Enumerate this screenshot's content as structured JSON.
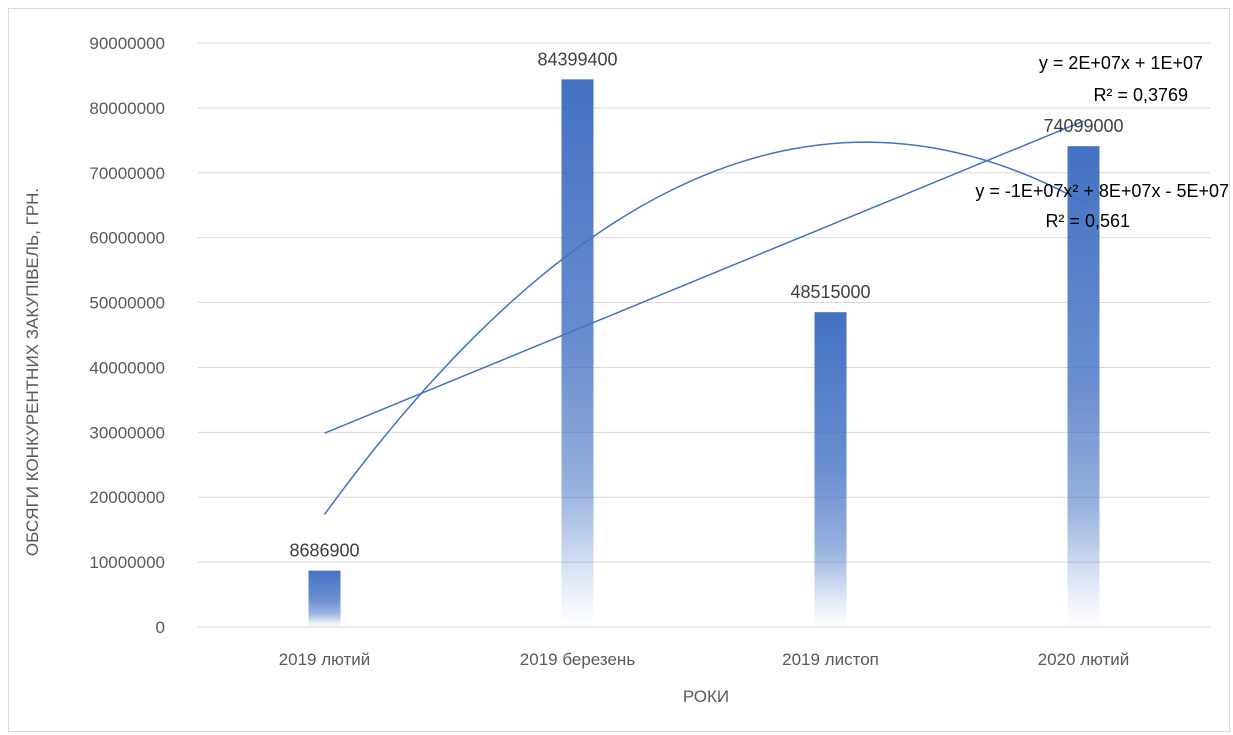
{
  "chart_data": {
    "type": "bar",
    "title": "",
    "xlabel": "РОКИ",
    "ylabel": "ОБСЯГИ КОНКУРЕНТНИХ ЗАКУПІВЕЛЬ, ГРН.",
    "categories": [
      "2019 лютий",
      "2019 березень",
      "2019 листоп",
      "2020 лютий"
    ],
    "values": [
      8686900,
      84399400,
      48515000,
      74099000
    ],
    "data_labels": [
      "8686900",
      "84399400",
      "48515000",
      "74099000"
    ],
    "ylim": [
      0,
      90000000
    ],
    "yticks": [
      0,
      10000000,
      20000000,
      30000000,
      40000000,
      50000000,
      60000000,
      70000000,
      80000000,
      90000000
    ],
    "ytick_labels": [
      "0",
      "10000000",
      "20000000",
      "30000000",
      "40000000",
      "50000000",
      "60000000",
      "70000000",
      "80000000",
      "90000000"
    ],
    "grid": true,
    "legend": "none",
    "bar_color": "#4472C4",
    "trendlines": [
      {
        "type": "linear",
        "equation": "y = 2E+07x + 1E+07",
        "r2": "R² = 0,3769",
        "color": "#4472C4"
      },
      {
        "type": "polynomial",
        "order": 2,
        "equation": "y = -1E+07x² + 8E+07x - 5E+07",
        "r2": "R² = 0,561",
        "color": "#4472C4"
      }
    ]
  }
}
